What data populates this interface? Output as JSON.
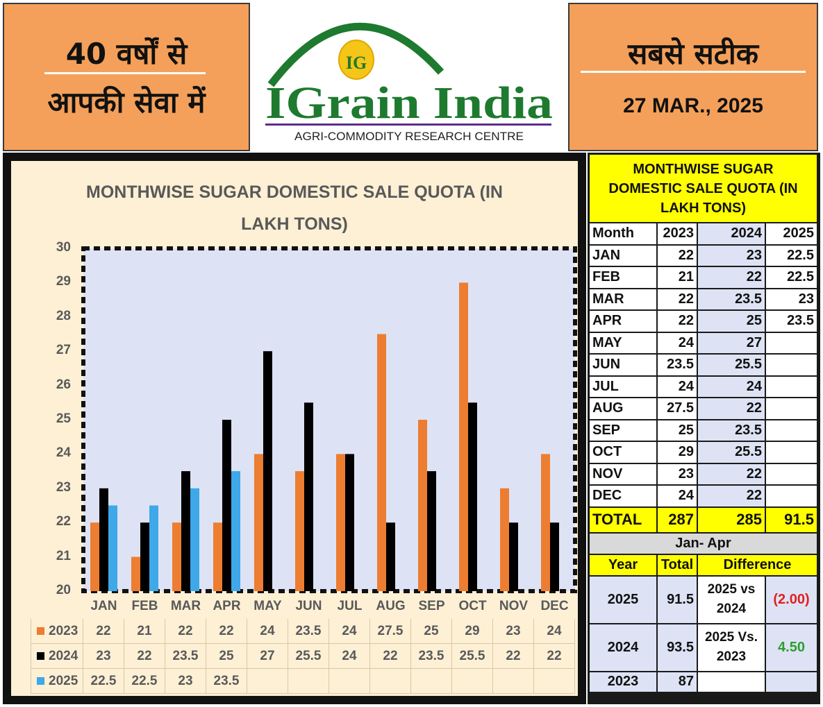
{
  "header": {
    "left_line1": "40 वर्षों से",
    "left_line2": "आपकी सेवा में",
    "right_line1": "सबसे सटीक",
    "date": "27 MAR., 2025",
    "logo_initials": "IG",
    "brand": "IGrain India",
    "tagline": "AGRI-COMMODITY RESEARCH CENTRE"
  },
  "colors": {
    "header_bg": "#f4a05a",
    "brand_green": "#1e7a2e",
    "series_2023": "#ed7d31",
    "series_2024": "#000000",
    "series_2025": "#3ea8e8",
    "table_title_bg": "#ffff00",
    "red_value": "#e02020",
    "green_value": "#2e9e2e"
  },
  "chart_data": {
    "type": "bar",
    "title": "MONTHWISE SUGAR DOMESTIC SALE QUOTA (IN LAKH TONS)",
    "title_line1": "MONTHWISE SUGAR DOMESTIC SALE QUOTA (IN",
    "title_line2": "LAKH TONS)",
    "categories": [
      "JAN",
      "FEB",
      "MAR",
      "APR",
      "MAY",
      "JUN",
      "JUL",
      "AUG",
      "SEP",
      "OCT",
      "NOV",
      "DEC"
    ],
    "series": [
      {
        "name": "2023",
        "values": [
          22,
          21,
          22,
          22,
          24,
          23.5,
          24,
          27.5,
          25,
          29,
          23,
          24
        ]
      },
      {
        "name": "2024",
        "values": [
          23,
          22,
          23.5,
          25,
          27,
          25.5,
          24,
          22,
          23.5,
          25.5,
          22,
          22
        ]
      },
      {
        "name": "2025",
        "values": [
          22.5,
          22.5,
          23,
          23.5,
          null,
          null,
          null,
          null,
          null,
          null,
          null,
          null
        ]
      }
    ],
    "ylim": [
      20,
      30
    ],
    "yticks": [
      20,
      21,
      22,
      23,
      24,
      25,
      26,
      27,
      28,
      29,
      30
    ],
    "legend": "data-table"
  },
  "table": {
    "title": "MONTHWISE SUGAR DOMESTIC SALE QUOTA (IN LAKH TONS)",
    "headers": [
      "Month",
      "2023",
      "2024",
      "2025"
    ],
    "rows": [
      [
        "JAN",
        "22",
        "23",
        "22.5"
      ],
      [
        "FEB",
        "21",
        "22",
        "22.5"
      ],
      [
        "MAR",
        "22",
        "23.5",
        "23"
      ],
      [
        "APR",
        "22",
        "25",
        "23.5"
      ],
      [
        "MAY",
        "24",
        "27",
        ""
      ],
      [
        "JUN",
        "23.5",
        "25.5",
        ""
      ],
      [
        "JUL",
        "24",
        "24",
        ""
      ],
      [
        "AUG",
        "27.5",
        "22",
        ""
      ],
      [
        "SEP",
        "25",
        "23.5",
        ""
      ],
      [
        "OCT",
        "29",
        "25.5",
        ""
      ],
      [
        "NOV",
        "23",
        "22",
        ""
      ],
      [
        "DEC",
        "24",
        "22",
        ""
      ]
    ],
    "total": [
      "TOTAL",
      "287",
      "285",
      "91.5"
    ],
    "section_title": "Jan- Apr",
    "sub_headers": [
      "Year",
      "Total",
      "Difference"
    ],
    "compare": [
      {
        "year": "2025",
        "total": "91.5",
        "label": "2025 vs 2024",
        "value": "(2.00)"
      },
      {
        "year": "2024",
        "total": "93.5",
        "label": "2025 Vs. 2023",
        "value": "4.50"
      },
      {
        "year": "2023",
        "total": "87",
        "label": "",
        "value": ""
      }
    ]
  }
}
